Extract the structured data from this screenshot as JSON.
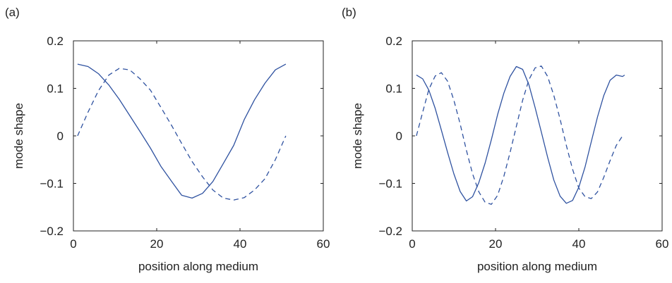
{
  "panels": [
    {
      "label": "(a)"
    },
    {
      "label": "(b)"
    }
  ],
  "chart_data": [
    {
      "type": "line",
      "xlabel": "position along medium",
      "ylabel": "mode shape",
      "xlim": [
        0,
        60
      ],
      "ylim": [
        -0.2,
        0.2
      ],
      "xticks": [
        0,
        20,
        40,
        60
      ],
      "xtick_labels": [
        "0",
        "20",
        "40",
        "60"
      ],
      "yticks": [
        0.2,
        0.1,
        0,
        -0.1,
        -0.2
      ],
      "ytick_labels": [
        "0.2",
        "0.1",
        "0",
        "−0.1",
        "−0.2"
      ],
      "grid": false,
      "series": [
        {
          "style": "solid",
          "color": "#2f52a0",
          "x": [
            1,
            3.5,
            6,
            8.5,
            11,
            13.5,
            16,
            18.5,
            21,
            23.5,
            26,
            28.5,
            31,
            33.5,
            36,
            38.5,
            41,
            43.5,
            46,
            48.5,
            51
          ],
          "y": [
            0.151,
            0.146,
            0.131,
            0.107,
            0.077,
            0.043,
            0.009,
            -0.026,
            -0.064,
            -0.095,
            -0.125,
            -0.131,
            -0.121,
            -0.096,
            -0.058,
            -0.02,
            0.034,
            0.076,
            0.111,
            0.139,
            0.151
          ]
        },
        {
          "style": "dashed",
          "color": "#2f52a0",
          "x": [
            1,
            3.5,
            6,
            8.5,
            11,
            13.5,
            16,
            18.5,
            21,
            23.5,
            26,
            28.5,
            31,
            33.5,
            36,
            38.5,
            41,
            43.5,
            46,
            48.5,
            51
          ],
          "y": [
            0.0,
            0.05,
            0.095,
            0.128,
            0.142,
            0.139,
            0.12,
            0.096,
            0.06,
            0.023,
            -0.016,
            -0.054,
            -0.086,
            -0.114,
            -0.131,
            -0.135,
            -0.13,
            -0.114,
            -0.09,
            -0.05,
            0.0
          ]
        }
      ]
    },
    {
      "type": "line",
      "xlabel": "position along medium",
      "ylabel": "mode shape",
      "xlim": [
        0,
        60
      ],
      "ylim": [
        -0.2,
        0.2
      ],
      "xticks": [
        0,
        20,
        40,
        60
      ],
      "xtick_labels": [
        "0",
        "20",
        "40",
        "60"
      ],
      "yticks": [
        0.2,
        0.1,
        0,
        -0.1,
        -0.2
      ],
      "ytick_labels": [
        "0.2",
        "0.1",
        "0",
        "−0.1",
        "−0.2"
      ],
      "grid": false,
      "series": [
        {
          "style": "solid",
          "color": "#2f52a0",
          "x": [
            1,
            2.5,
            4,
            5.5,
            7,
            8.5,
            10,
            11.5,
            13,
            14.5,
            16,
            17.5,
            19,
            20.5,
            22,
            23.5,
            25,
            26.5,
            28,
            29.5,
            31,
            32.5,
            34,
            35.5,
            37,
            38.5,
            40,
            41.5,
            43,
            44.5,
            46,
            47.5,
            49,
            50.5,
            51
          ],
          "y": [
            0.128,
            0.12,
            0.096,
            0.058,
            0.012,
            -0.035,
            -0.08,
            -0.117,
            -0.137,
            -0.128,
            -0.098,
            -0.057,
            -0.008,
            0.045,
            0.09,
            0.125,
            0.146,
            0.14,
            0.108,
            0.06,
            0.008,
            -0.045,
            -0.093,
            -0.127,
            -0.142,
            -0.136,
            -0.108,
            -0.065,
            -0.012,
            0.04,
            0.085,
            0.117,
            0.128,
            0.125,
            0.128
          ]
        },
        {
          "style": "dashed",
          "color": "#2f52a0",
          "x": [
            1,
            2.5,
            4,
            5.5,
            7,
            8.5,
            10,
            11.5,
            13,
            14.5,
            16,
            17.5,
            19,
            20.5,
            22,
            23.5,
            25,
            26.5,
            28,
            29.5,
            31,
            32.5,
            34,
            35.5,
            37,
            38.5,
            40,
            41.5,
            43,
            44.5,
            46,
            47.5,
            49,
            50.5,
            51
          ],
          "y": [
            0.0,
            0.05,
            0.098,
            0.126,
            0.133,
            0.115,
            0.075,
            0.025,
            -0.03,
            -0.08,
            -0.118,
            -0.14,
            -0.144,
            -0.125,
            -0.085,
            -0.035,
            0.02,
            0.075,
            0.118,
            0.143,
            0.147,
            0.125,
            0.085,
            0.035,
            -0.02,
            -0.07,
            -0.11,
            -0.128,
            -0.132,
            -0.118,
            -0.087,
            -0.052,
            -0.02,
            0.0,
            0.0
          ]
        }
      ]
    }
  ]
}
